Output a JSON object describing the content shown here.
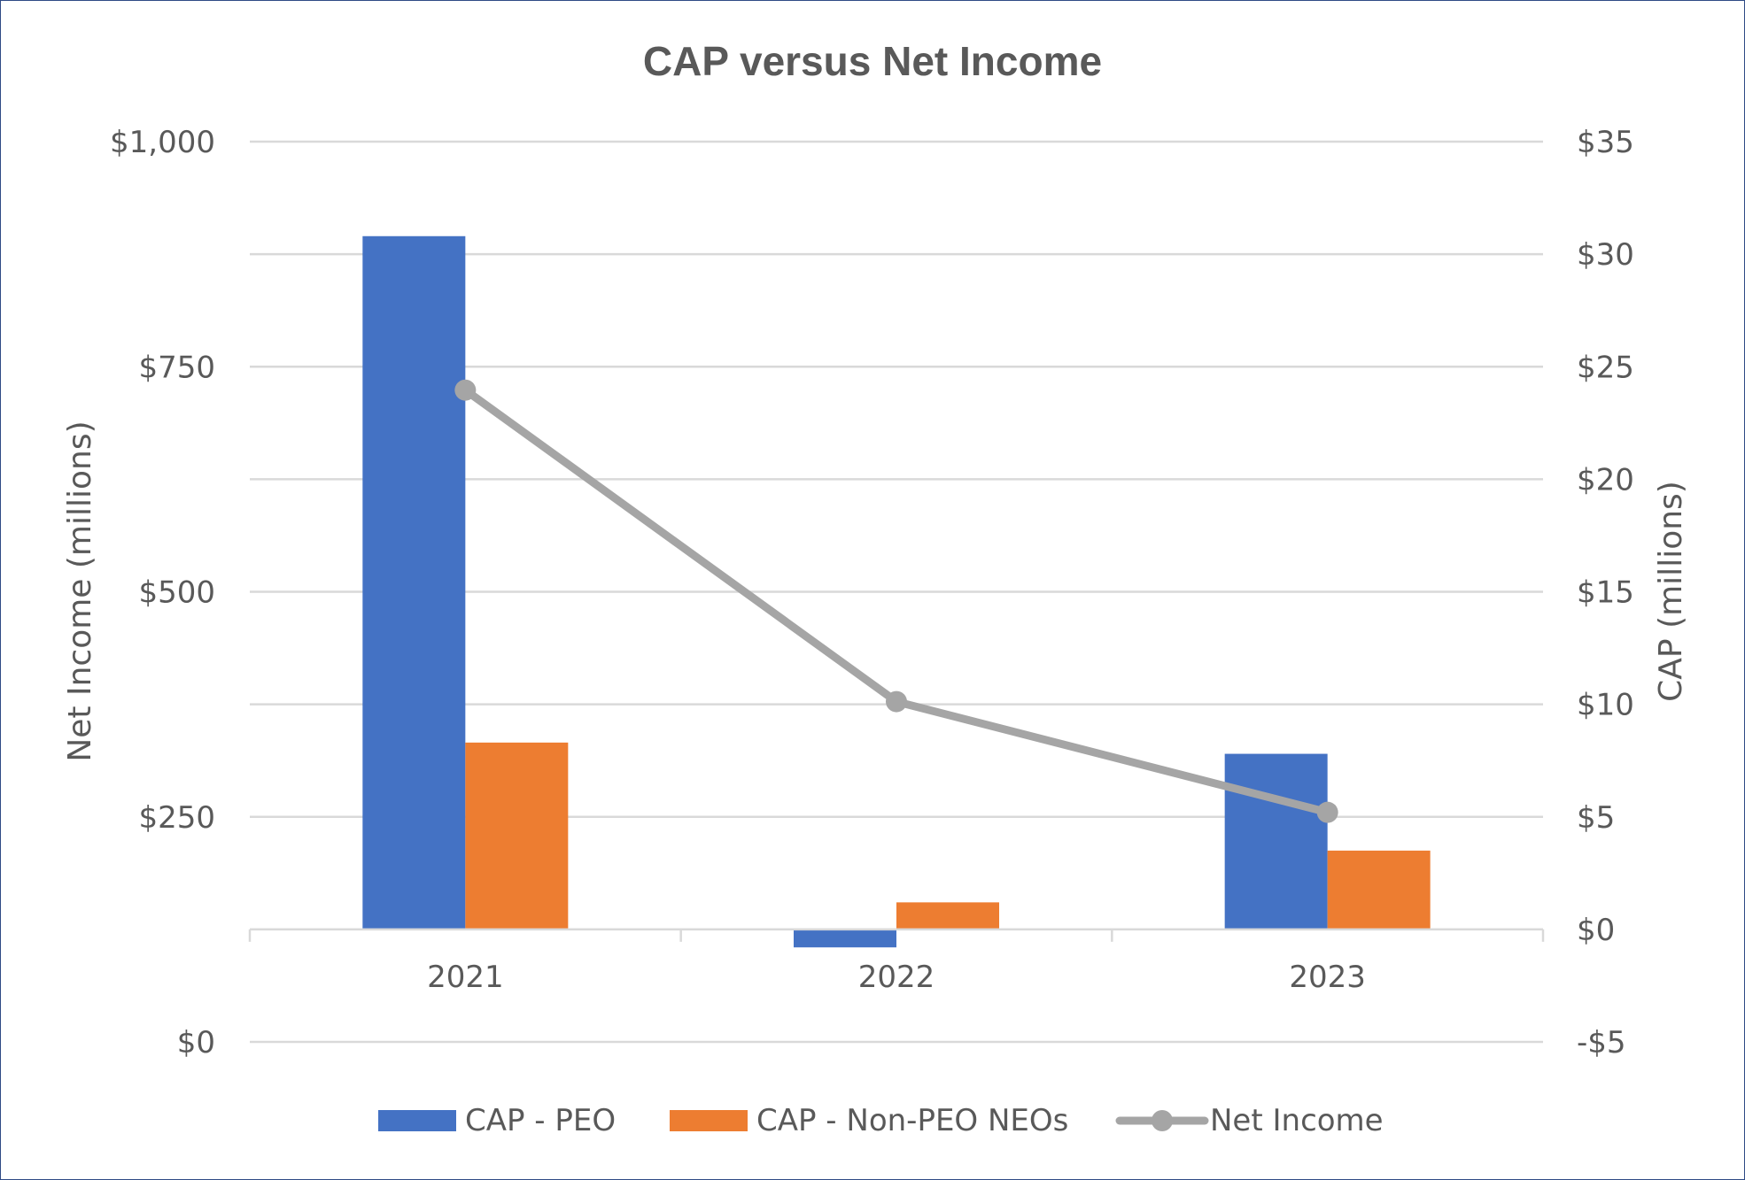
{
  "colors": {
    "peo": "#4472C4",
    "non_peo": "#ED7D31",
    "net_income": "#A5A5A5",
    "text": "#595959",
    "grid": "#D9D9D9",
    "border": "#2F4A85"
  },
  "chart_data": {
    "type": "bar",
    "title": "CAP versus Net Income",
    "categories": [
      "2021",
      "2022",
      "2023"
    ],
    "left_axis": {
      "label": "Net Income (millions)",
      "range": [
        0,
        1000
      ],
      "ticks": [
        "$1,000",
        "$750",
        "$500",
        "$250",
        "$0"
      ],
      "tick_values": [
        1000,
        750,
        500,
        250,
        0
      ]
    },
    "right_axis": {
      "label": "CAP (millions)",
      "range": [
        -5,
        35
      ],
      "ticks": [
        "$35",
        "$30",
        "$25",
        "$20",
        "$15",
        "$10",
        "$5",
        "$0",
        "-$5"
      ],
      "tick_values": [
        35,
        30,
        25,
        20,
        15,
        10,
        5,
        0,
        -5
      ]
    },
    "series": [
      {
        "name": "CAP - PEO",
        "type": "bar",
        "axis": "right",
        "color": "#4472C4",
        "values": [
          30.8,
          -0.8,
          7.8
        ]
      },
      {
        "name": "CAP - Non-PEO NEOs",
        "type": "bar",
        "axis": "right",
        "color": "#ED7D31",
        "values": [
          8.3,
          1.2,
          3.5
        ]
      },
      {
        "name": "Net Income",
        "type": "line",
        "axis": "left",
        "color": "#A5A5A5",
        "values": [
          724,
          378,
          255
        ]
      }
    ],
    "legend_position": "bottom"
  }
}
